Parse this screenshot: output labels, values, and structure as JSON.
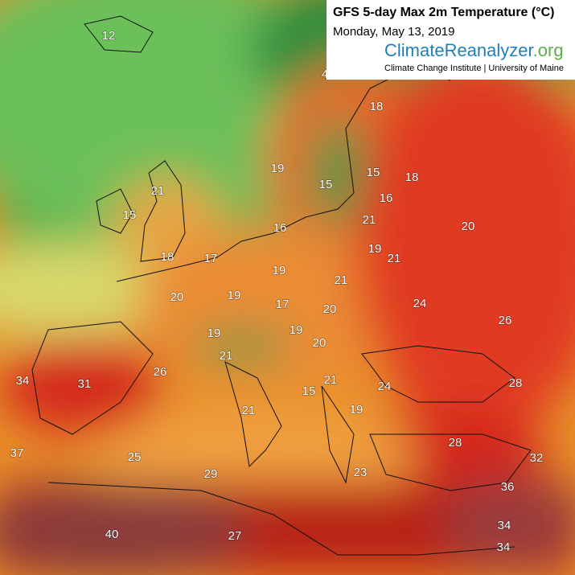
{
  "header": {
    "title": "GFS 5-day Max 2m Temperature (°C)",
    "date": "Monday, May 13, 2019",
    "brand": {
      "climate": "Climate",
      "reanalyzer": "Reanalyzer",
      "org": ".org"
    },
    "institute": "Climate Change Institute | University of Maine"
  },
  "labels": [
    12,
    4,
    18,
    19,
    15,
    15,
    18,
    21,
    15,
    16,
    16,
    21,
    20,
    18,
    17,
    19,
    21,
    19,
    21,
    20,
    19,
    17,
    20,
    24,
    26,
    19,
    19,
    20,
    21,
    26,
    34,
    31,
    21,
    24,
    28,
    15,
    21,
    19,
    28,
    37,
    25,
    32,
    29,
    23,
    36,
    34,
    40,
    27,
    34
  ]
}
